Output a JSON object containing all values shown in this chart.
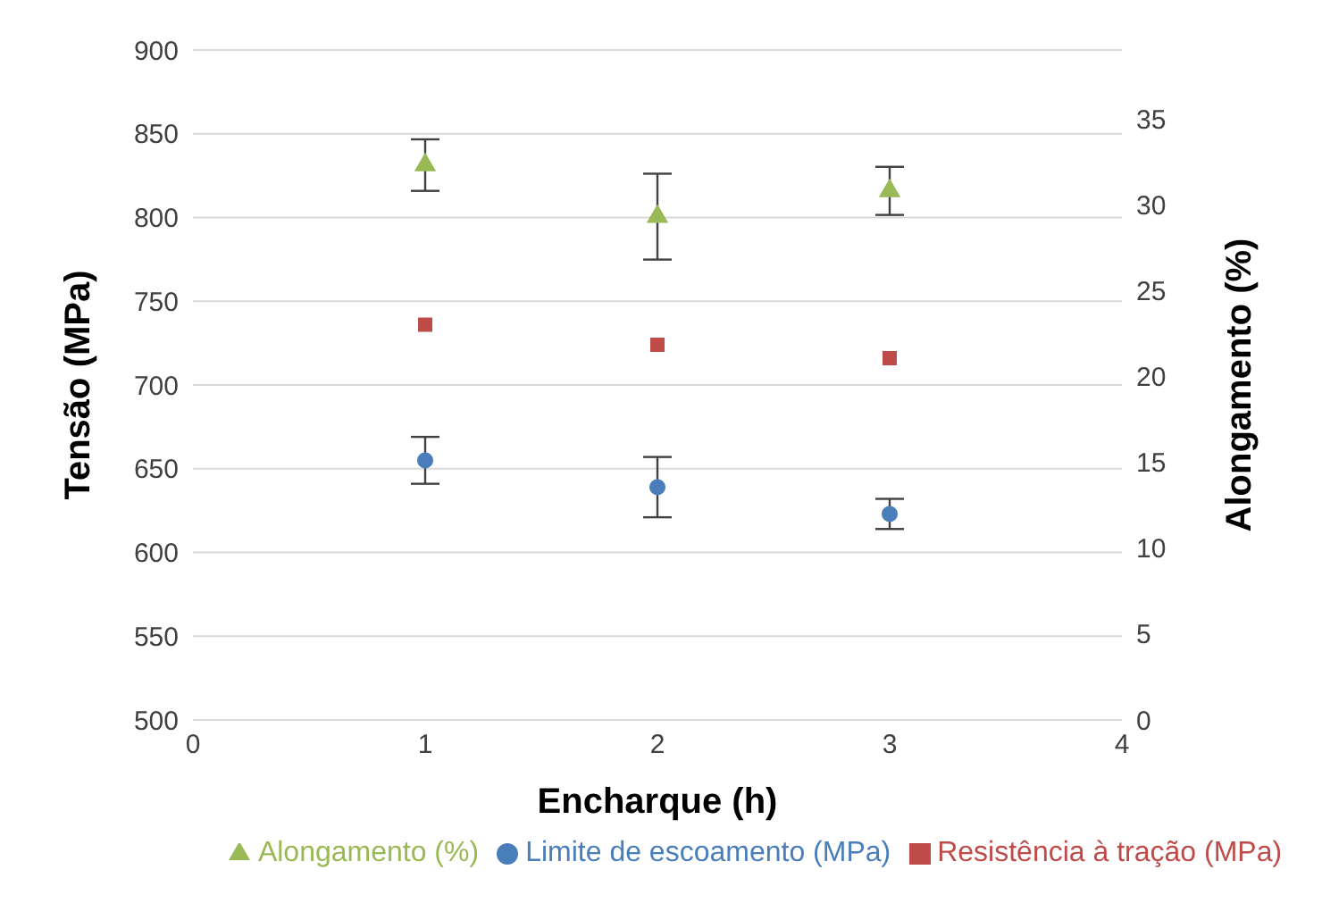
{
  "chart_data": {
    "type": "scatter",
    "xlabel": "Encharque (h)",
    "ylabel": "Tensão (MPa)",
    "y2label": "Alongamento (%)",
    "x": [
      1,
      2,
      3
    ],
    "xlim": [
      0,
      4
    ],
    "xticks": [
      0,
      1,
      2,
      3,
      4
    ],
    "ylim": [
      500,
      900
    ],
    "yticks": [
      500,
      550,
      600,
      650,
      700,
      750,
      800,
      850,
      900
    ],
    "y2lim": [
      0,
      39
    ],
    "y2ticks": [
      0,
      5,
      10,
      15,
      20,
      25,
      30,
      35
    ],
    "grid": "y",
    "legend": "bottom",
    "series": [
      {
        "name": "Limite de escoamento (MPa)",
        "color": "#4a7ebb",
        "marker": "circle",
        "values": [
          655,
          639,
          623
        ],
        "errors": [
          14,
          18,
          9
        ]
      },
      {
        "name": "Resistência à tração (MPa)",
        "color": "#be4b48",
        "marker": "square",
        "values": [
          736,
          724,
          716
        ]
      },
      {
        "name": "Alongamento (%)",
        "color": "#98b954",
        "marker": "triangle",
        "axis": "y2",
        "values": [
          32.3,
          29.3,
          30.8
        ],
        "errors": [
          1.5,
          2.5,
          1.4
        ]
      }
    ]
  }
}
